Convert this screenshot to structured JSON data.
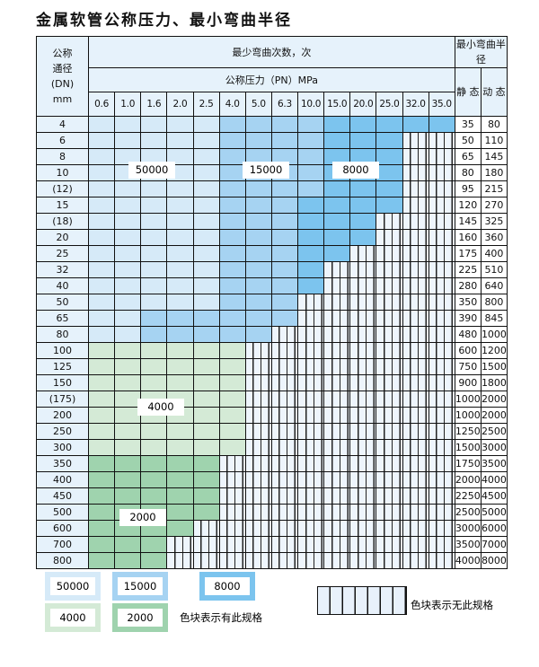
{
  "title": "金属软管公称压力、最小弯曲半径",
  "header": {
    "dn_label": [
      "公称",
      "通径",
      "(DN)",
      "mm"
    ],
    "cycles_label": "最少弯曲次数，次",
    "pressure_label": "公称压力（PN）MPa",
    "radius_label": "最小弯曲半径",
    "static_label": "静 态",
    "dynamic_label": "动 态",
    "pressures": [
      "0.6",
      "1.0",
      "1.6",
      "2.0",
      "2.5",
      "4.0",
      "5.0",
      "6.3",
      "10.0",
      "15.0",
      "20.0",
      "25.0",
      "32.0",
      "35.0"
    ]
  },
  "cell_legend": {
    "A": "50000",
    "B": "15000",
    "C": "8000",
    "D": "4000",
    "E": "2000",
    "-": "none"
  },
  "colors": {
    "A": "#d6eaf8",
    "B": "#a6d3f2",
    "C": "#7cc4ee",
    "D": "#d4ead6",
    "E": "#9fd3ae",
    "empty": "#eef5fc"
  },
  "rows": [
    {
      "dn": "4",
      "cells": "AAAAABBBBCCCCC",
      "static": "35",
      "dynamic": "80"
    },
    {
      "dn": "6",
      "cells": "AAAAABBBBCCC--",
      "static": "50",
      "dynamic": "110"
    },
    {
      "dn": "8",
      "cells": "AAAAABBBBCCC--",
      "static": "65",
      "dynamic": "145"
    },
    {
      "dn": "10",
      "cells": "AAAAABBBBCCC--",
      "static": "80",
      "dynamic": "180"
    },
    {
      "dn": "(12)",
      "cells": "AAAAABBBBCCC--",
      "static": "95",
      "dynamic": "215"
    },
    {
      "dn": "15",
      "cells": "AAAAABBBCCCC--",
      "static": "120",
      "dynamic": "270"
    },
    {
      "dn": "(18)",
      "cells": "AAAAABBBCCC---",
      "static": "145",
      "dynamic": "325"
    },
    {
      "dn": "20",
      "cells": "AAAAABBBCCC---",
      "static": "160",
      "dynamic": "360"
    },
    {
      "dn": "25",
      "cells": "AAAAABBBCC----",
      "static": "175",
      "dynamic": "400"
    },
    {
      "dn": "32",
      "cells": "AAAAABBBC-----",
      "static": "225",
      "dynamic": "510"
    },
    {
      "dn": "40",
      "cells": "AAAAABBBC-----",
      "static": "280",
      "dynamic": "640"
    },
    {
      "dn": "50",
      "cells": "AAAAABBB------",
      "static": "350",
      "dynamic": "800"
    },
    {
      "dn": "65",
      "cells": "AABBBBBB------",
      "static": "390",
      "dynamic": "845"
    },
    {
      "dn": "80",
      "cells": "AABBBBB-------",
      "static": "480",
      "dynamic": "1000"
    },
    {
      "dn": "100",
      "cells": "DDDDDD--------",
      "static": "600",
      "dynamic": "1200"
    },
    {
      "dn": "125",
      "cells": "DDDDDD--------",
      "static": "750",
      "dynamic": "1500"
    },
    {
      "dn": "150",
      "cells": "DDDDDD--------",
      "static": "900",
      "dynamic": "1800"
    },
    {
      "dn": "(175)",
      "cells": "DDDDDD--------",
      "static": "1000",
      "dynamic": "2000"
    },
    {
      "dn": "200",
      "cells": "DDDDDD--------",
      "static": "1000",
      "dynamic": "2000"
    },
    {
      "dn": "250",
      "cells": "DDDDDD--------",
      "static": "1250",
      "dynamic": "2500"
    },
    {
      "dn": "300",
      "cells": "DDDDDD--------",
      "static": "1500",
      "dynamic": "3000"
    },
    {
      "dn": "350",
      "cells": "EEEEE---------",
      "static": "1750",
      "dynamic": "3500"
    },
    {
      "dn": "400",
      "cells": "EEEEE---------",
      "static": "2000",
      "dynamic": "4000"
    },
    {
      "dn": "450",
      "cells": "EEEEE---------",
      "static": "2250",
      "dynamic": "4500"
    },
    {
      "dn": "500",
      "cells": "EEEEE---------",
      "static": "2500",
      "dynamic": "5000"
    },
    {
      "dn": "600",
      "cells": "EEEE----------",
      "static": "3000",
      "dynamic": "6000"
    },
    {
      "dn": "700",
      "cells": "EEE-----------",
      "static": "3500",
      "dynamic": "7000"
    },
    {
      "dn": "800",
      "cells": "EEE-----------",
      "static": "4000",
      "dynamic": "8000"
    }
  ],
  "region_labels": {
    "a": "50000",
    "b": "15000",
    "c": "8000",
    "d": "4000",
    "e": "2000"
  },
  "legend": {
    "a": "50000",
    "b": "15000",
    "c": "8000",
    "d": "4000",
    "e": "2000",
    "has_spec": "色块表示有此规格",
    "no_spec": "色块表示无此规格"
  }
}
